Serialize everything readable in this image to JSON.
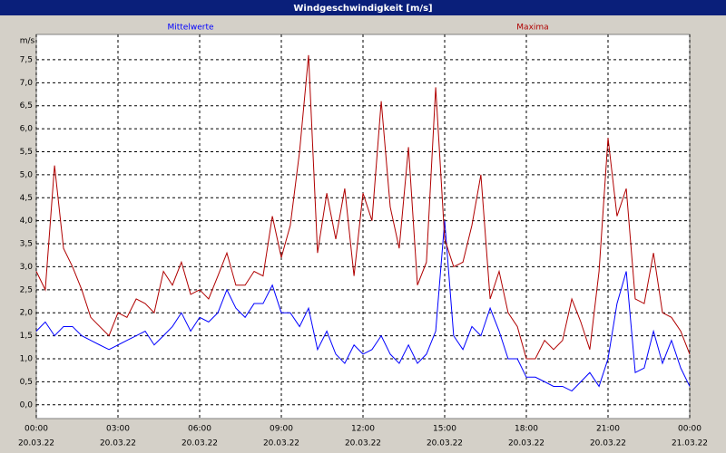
{
  "chart_data": {
    "type": "line",
    "title": "Windgeschwindigkeit [m/s]",
    "y_unit": "m/s",
    "x": [
      0,
      0.33,
      0.67,
      1,
      1.33,
      1.67,
      2,
      2.33,
      2.67,
      3,
      3.33,
      3.67,
      4,
      4.33,
      4.67,
      5,
      5.33,
      5.67,
      6,
      6.33,
      6.67,
      7,
      7.33,
      7.67,
      8,
      8.33,
      8.67,
      9,
      9.33,
      9.67,
      10,
      10.33,
      10.67,
      11,
      11.33,
      11.67,
      12,
      12.33,
      12.67,
      13,
      13.33,
      13.67,
      14,
      14.33,
      14.67,
      15,
      15.33,
      15.67,
      16,
      16.33,
      16.67,
      17,
      17.33,
      17.67,
      18,
      18.33,
      18.67,
      19,
      19.33,
      19.67,
      20,
      20.33,
      20.67,
      21,
      21.33,
      21.67,
      22,
      22.33,
      22.67,
      23,
      23.33,
      23.67,
      24
    ],
    "series": [
      {
        "name": "Mittelwerte",
        "color": "#0000ff",
        "values": [
          1.6,
          1.8,
          1.5,
          1.7,
          1.7,
          1.5,
          1.4,
          1.3,
          1.2,
          1.3,
          1.4,
          1.5,
          1.6,
          1.3,
          1.5,
          1.7,
          2.0,
          1.6,
          1.9,
          1.8,
          2.0,
          2.5,
          2.1,
          1.9,
          2.2,
          2.2,
          2.6,
          2.0,
          2.0,
          1.7,
          2.1,
          1.2,
          1.6,
          1.1,
          0.9,
          1.3,
          1.1,
          1.2,
          1.5,
          1.1,
          0.9,
          1.3,
          0.9,
          1.1,
          1.6,
          4.0,
          1.5,
          1.2,
          1.7,
          1.5,
          2.1,
          1.6,
          1.0,
          1.0,
          0.6,
          0.6,
          0.5,
          0.4,
          0.4,
          0.3,
          0.5,
          0.7,
          0.4,
          1.0,
          2.2,
          2.9,
          0.7,
          0.8,
          1.6,
          0.9,
          1.4,
          0.8,
          0.4
        ]
      },
      {
        "name": "Maxima",
        "color": "#b00000",
        "values": [
          2.9,
          2.5,
          5.2,
          3.4,
          3.0,
          2.5,
          1.9,
          1.7,
          1.5,
          2.0,
          1.9,
          2.3,
          2.2,
          2.0,
          2.9,
          2.6,
          3.1,
          2.4,
          2.5,
          2.3,
          2.8,
          3.3,
          2.6,
          2.6,
          2.9,
          2.8,
          4.1,
          3.2,
          3.9,
          5.5,
          7.6,
          3.3,
          4.6,
          3.6,
          4.7,
          2.8,
          4.6,
          4.0,
          6.6,
          4.3,
          3.4,
          5.6,
          2.6,
          3.1,
          6.9,
          3.6,
          3.0,
          3.1,
          3.9,
          5.0,
          2.3,
          2.9,
          2.0,
          1.7,
          1.0,
          1.0,
          1.4,
          1.2,
          1.4,
          2.3,
          1.8,
          1.2,
          2.9,
          5.8,
          4.1,
          4.7,
          2.3,
          2.2,
          3.3,
          2.0,
          1.9,
          1.6,
          1.1
        ]
      }
    ],
    "xlim": [
      0,
      24
    ],
    "xticks": [
      {
        "value": 0,
        "label": "00:00"
      },
      {
        "value": 3,
        "label": "03:00"
      },
      {
        "value": 6,
        "label": "06:00"
      },
      {
        "value": 9,
        "label": "09:00"
      },
      {
        "value": 12,
        "label": "12:00"
      },
      {
        "value": 15,
        "label": "15:00"
      },
      {
        "value": 18,
        "label": "18:00"
      },
      {
        "value": 21,
        "label": "21:00"
      },
      {
        "value": 24,
        "label": "00:00"
      }
    ],
    "xtick_dates": [
      "20.03.22",
      "20.03.22",
      "20.03.22",
      "20.03.22",
      "20.03.22",
      "20.03.22",
      "20.03.22",
      "20.03.22",
      "21.03.22"
    ],
    "ylim": [
      -0.3,
      8.05
    ],
    "yticks": [
      {
        "value": 0,
        "label": "0,0"
      },
      {
        "value": 0.5,
        "label": "0,5"
      },
      {
        "value": 1,
        "label": "1,0"
      },
      {
        "value": 1.5,
        "label": "1,5"
      },
      {
        "value": 2,
        "label": "2,0"
      },
      {
        "value": 2.5,
        "label": "2,5"
      },
      {
        "value": 3,
        "label": "3,0"
      },
      {
        "value": 3.5,
        "label": "3,5"
      },
      {
        "value": 4,
        "label": "4,0"
      },
      {
        "value": 4.5,
        "label": "4,5"
      },
      {
        "value": 5,
        "label": "5,0"
      },
      {
        "value": 5.5,
        "label": "5,5"
      },
      {
        "value": 6,
        "label": "6,0"
      },
      {
        "value": 6.5,
        "label": "6,5"
      },
      {
        "value": 7,
        "label": "7,0"
      },
      {
        "value": 7.5,
        "label": "7,5"
      }
    ],
    "grid": true
  }
}
